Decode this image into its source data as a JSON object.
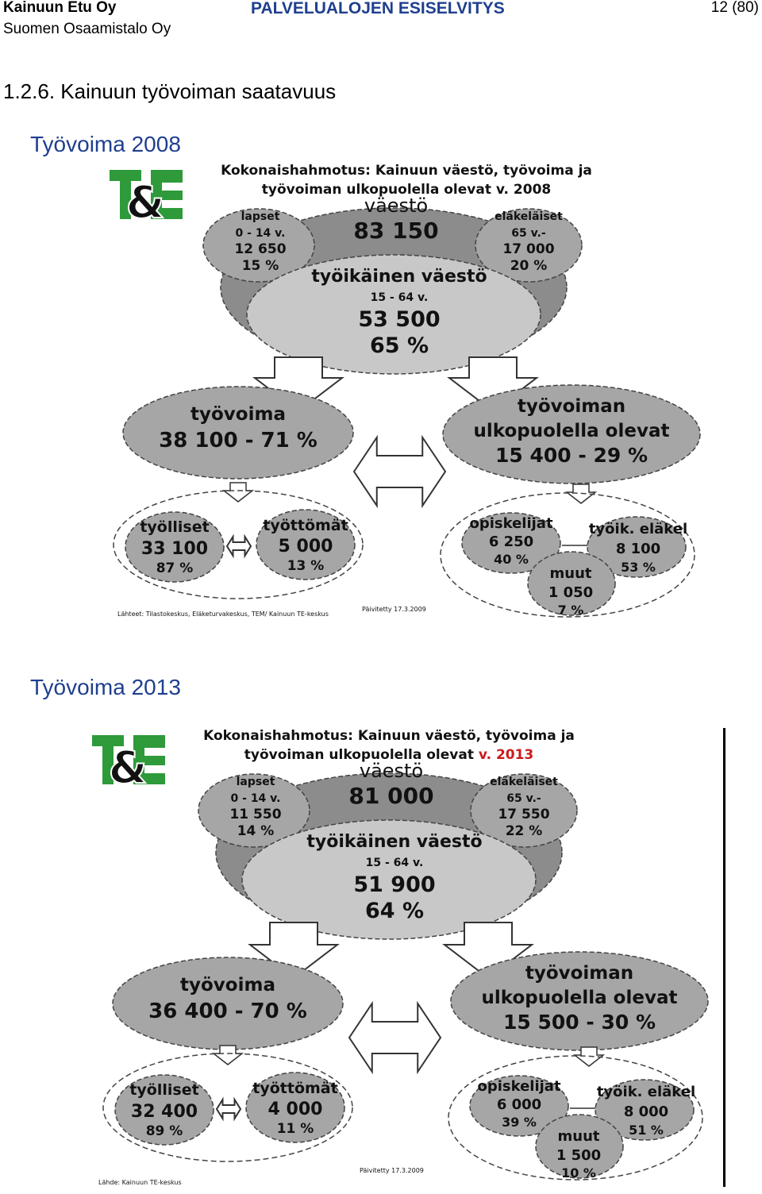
{
  "header": {
    "company": "Kainuun Etu Oy",
    "subcompany": "Suomen Osaamistalo Oy",
    "doc_title": "PALVELUALOJEN ESISELVITYS",
    "page": "12 (80)"
  },
  "section_title": "1.2.6.  Kainuun työvoiman saatavuus",
  "figures": [
    {
      "heading": "Työvoima 2008",
      "title_line1": "Kokonaishahmotus: Kainuun väestö, työvoima ja",
      "title_line2_prefix": "työvoiman ulkopuolella olevat v. 2008",
      "title_line2_year": "",
      "vaesto_label": "väestö",
      "vaesto_value": "83 150",
      "lapset": [
        "lapset",
        "0 - 14 v.",
        "12 650",
        "15 %"
      ],
      "elakelaiset": [
        "eläkeläiset",
        "65 v.-",
        "17 000",
        "20 %"
      ],
      "tyoikainen": [
        "työikäinen väestö",
        "15 - 64 v.",
        "53 500",
        "65 %"
      ],
      "tyovoima": [
        "työvoima",
        "38 100 - 71 %"
      ],
      "ulkopuolella": [
        "työvoiman",
        "ulkopuolella olevat",
        "15 400 - 29 %"
      ],
      "tyolliset": [
        "työlliset",
        "33 100",
        "87 %"
      ],
      "tyottomat": [
        "työttömät",
        "5 000",
        "13 %"
      ],
      "opiskelijat": [
        "opiskelijat",
        "6 250",
        "40 %"
      ],
      "elakel": [
        "työik. eläkel",
        "8 100",
        "53 %"
      ],
      "muut": [
        "muut",
        "1 050",
        "7 %"
      ],
      "source": "Lähteet: Tilastokeskus, Eläketurvakeskus, TEM/ Kainuun TE-keskus",
      "updated": "Päivitetty 17.3.2009"
    },
    {
      "heading": "Työvoima 2013",
      "title_line1": "Kokonaishahmotus: Kainuun väestö, työvoima ja",
      "title_line2_prefix": "työvoiman ulkopuolella olevat ",
      "title_line2_year": "v. 2013",
      "vaesto_label": "väestö",
      "vaesto_value": "81 000",
      "lapset": [
        "lapset",
        "0 - 14 v.",
        "11 550",
        "14 %"
      ],
      "elakelaiset": [
        "eläkeläiset",
        "65 v.-",
        "17 550",
        "22 %"
      ],
      "tyoikainen": [
        "työikäinen väestö",
        "15 - 64 v.",
        "51 900",
        "64 %"
      ],
      "tyovoima": [
        "työvoima",
        "36 400 - 70 %"
      ],
      "ulkopuolella": [
        "työvoiman",
        "ulkopuolella olevat",
        "15 500 - 30 %"
      ],
      "tyolliset": [
        "työlliset",
        "32 400",
        "89 %"
      ],
      "tyottomat": [
        "työttömät",
        "4 000",
        "11 %"
      ],
      "opiskelijat": [
        "opiskelijat",
        "6 000",
        "39 %"
      ],
      "elakel": [
        "työik. eläkel",
        "8 000",
        "51 %"
      ],
      "muut": [
        "muut",
        "1 500",
        "10 %"
      ],
      "source": "Lähde: Kainuun TE-keskus",
      "updated": "Päivitetty 17.3.2009"
    }
  ],
  "colors": {
    "dark_grey": "#8c8c8c",
    "mid_grey": "#a6a6a6",
    "light_grey": "#c8c8c8",
    "te_green": "#2e9a3a",
    "te_blue": "#1f5fb0",
    "heading_blue": "#1f3f8f",
    "year_red": "#cc1a1a"
  }
}
